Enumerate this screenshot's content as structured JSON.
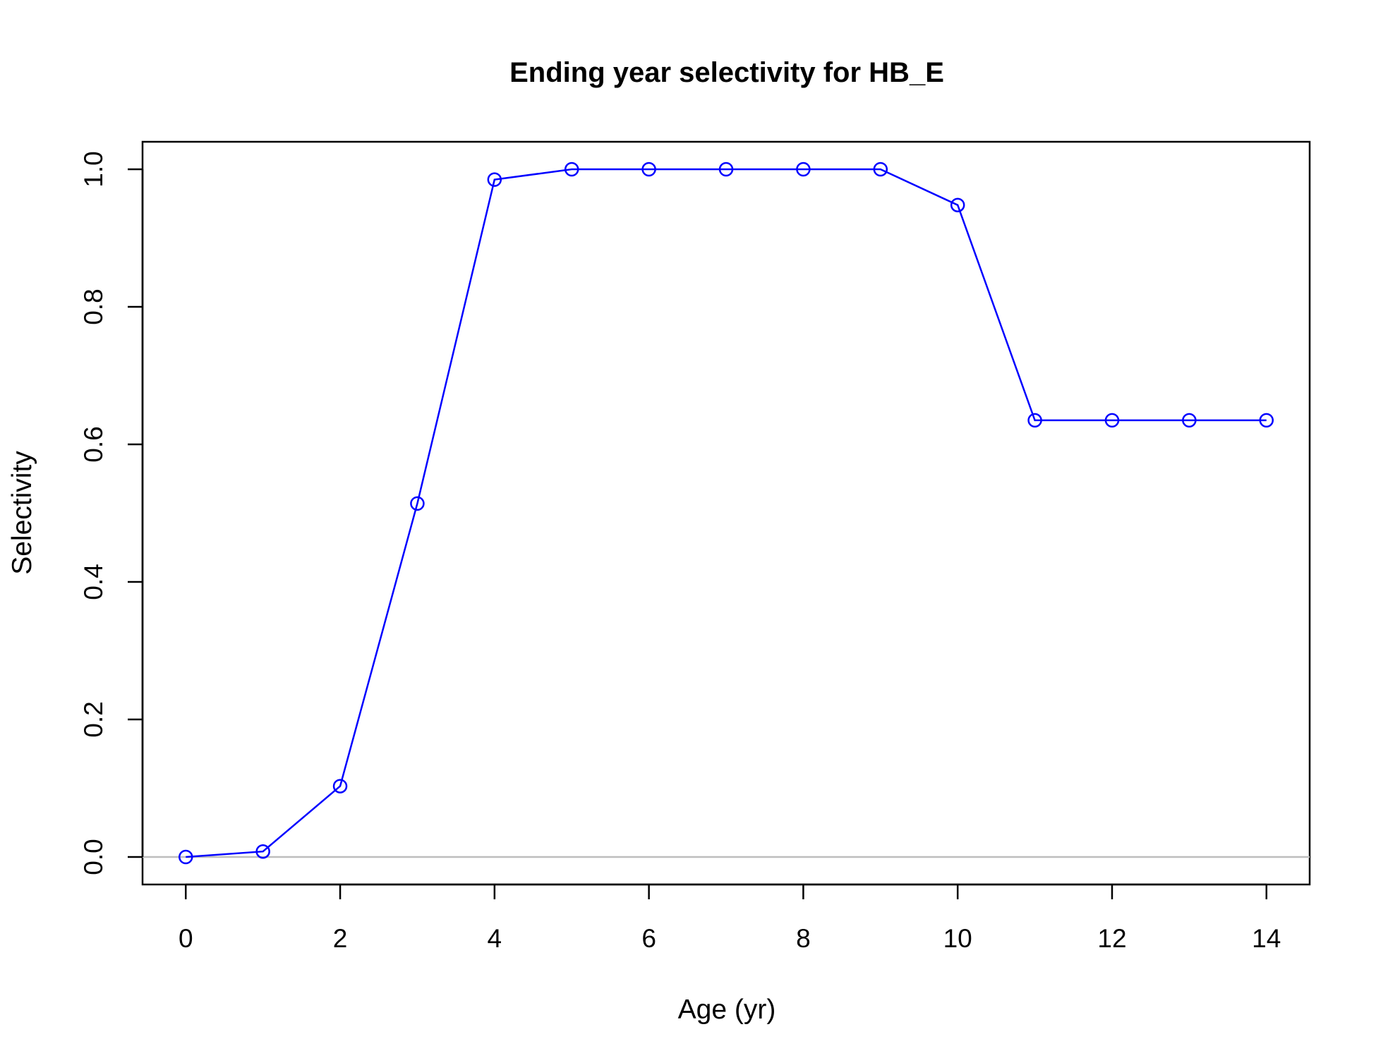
{
  "chart_data": {
    "type": "line",
    "title": "Ending year selectivity for HB_E",
    "xlabel": "Age (yr)",
    "ylabel": "Selectivity",
    "x": [
      0,
      1,
      2,
      3,
      4,
      5,
      6,
      7,
      8,
      9,
      10,
      11,
      12,
      13,
      14
    ],
    "series": [
      {
        "values": [
          0.0,
          0.008,
          0.103,
          0.514,
          0.985,
          1.0,
          1.0,
          1.0,
          1.0,
          1.0,
          0.948,
          0.635,
          0.635,
          0.635,
          0.635
        ],
        "color": "#0000ff",
        "marker": "open-circle"
      }
    ],
    "xlim": [
      -0.56,
      14.56
    ],
    "ylim": [
      -0.04,
      1.04
    ],
    "xticks": [
      "0",
      "2",
      "4",
      "6",
      "8",
      "10",
      "12",
      "14"
    ],
    "yticks": [
      "0.0",
      "0.2",
      "0.4",
      "0.6",
      "0.8",
      "1.0"
    ],
    "reference_line": {
      "y": 0,
      "color": "#bebebe"
    },
    "grid": false,
    "legend": "none"
  }
}
